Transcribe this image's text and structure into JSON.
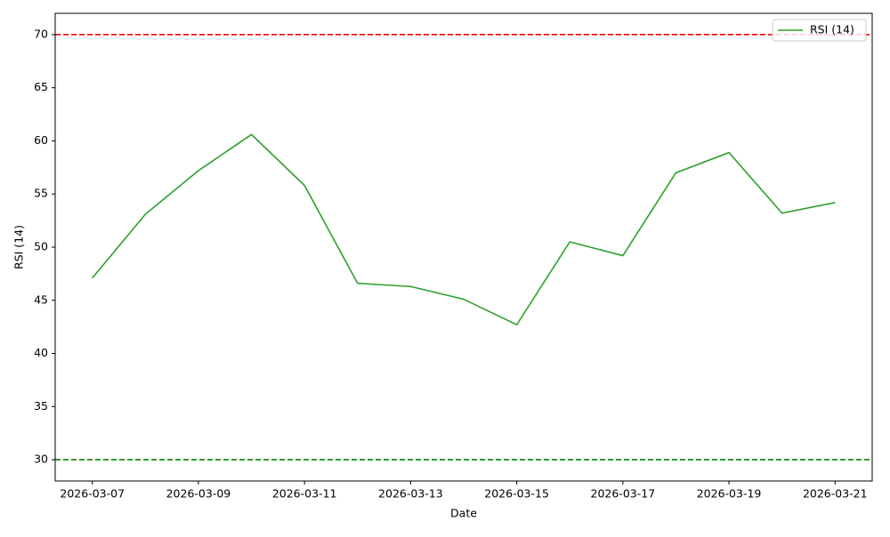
{
  "chart_data": {
    "type": "line",
    "xlabel": "Date",
    "ylabel": "RSI (14)",
    "x": [
      "2026-03-07",
      "2026-03-08",
      "2026-03-09",
      "2026-03-10",
      "2026-03-11",
      "2026-03-12",
      "2026-03-13",
      "2026-03-14",
      "2026-03-15",
      "2026-03-16",
      "2026-03-17",
      "2026-03-18",
      "2026-03-19",
      "2026-03-20",
      "2026-03-21"
    ],
    "series": [
      {
        "name": "RSI (14)",
        "color": "#2ca02c",
        "values": [
          47.1,
          53.1,
          57.2,
          60.6,
          55.8,
          46.6,
          46.3,
          45.1,
          42.7,
          50.5,
          49.2,
          57.0,
          58.9,
          53.2,
          54.2
        ]
      }
    ],
    "hlines": [
      {
        "value": 70,
        "color": "#ff0000"
      },
      {
        "value": 30,
        "color": "#008000"
      }
    ],
    "ylim": [
      28,
      72
    ],
    "yticks": [
      30,
      35,
      40,
      45,
      50,
      55,
      60,
      65,
      70
    ],
    "xticks": [
      "2026-03-07",
      "2026-03-09",
      "2026-03-11",
      "2026-03-13",
      "2026-03-15",
      "2026-03-17",
      "2026-03-19",
      "2026-03-21"
    ],
    "legend": "upper right"
  }
}
